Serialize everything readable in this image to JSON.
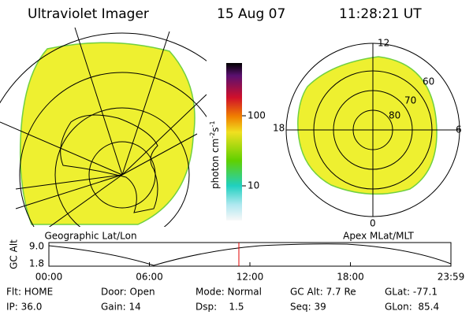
{
  "header": {
    "title": "Ultraviolet Imager",
    "date": "15 Aug 07",
    "time": "11:28:21 UT"
  },
  "left_panel": {
    "label": "Geographic Lat/Lon"
  },
  "right_panel": {
    "label": "Apex MLat/MLT",
    "mlt_labels": [
      "12",
      "6",
      "0",
      "18"
    ],
    "lat_labels": [
      "60",
      "70",
      "80"
    ]
  },
  "colorbar": {
    "unit": "photon cm",
    "exp1": "-2",
    "s": "s",
    "exp2": "-1",
    "ticks": [
      "100",
      "10"
    ]
  },
  "altitude_plot": {
    "ylabel": "GC Alt",
    "yticks": [
      "9.0",
      "1.8"
    ],
    "xticks": [
      "00:00",
      "06:00",
      "12:00",
      "18:00",
      "23:59"
    ]
  },
  "status": {
    "rows": [
      [
        "Flt: HOME",
        "Door: Open",
        "Mode: Normal",
        "GC Alt: 7.7 Re",
        "GLat: -77.1"
      ],
      [
        "IP: 36.0",
        "Gain: 14",
        "Dsp:    1.5",
        "Seq: 39",
        "GLon:  85.4"
      ]
    ]
  }
}
